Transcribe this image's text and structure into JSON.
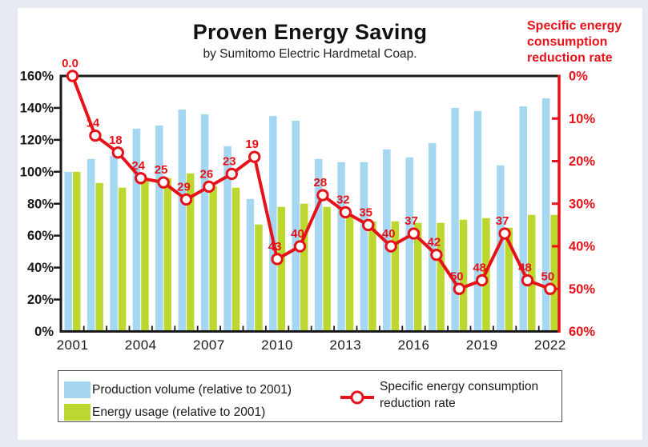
{
  "title": "Proven Energy Saving",
  "subtitle": "by Sumitomo Electric Hardmetal Coap.",
  "right_axis_title_lines": [
    "Specific energy",
    "consumption",
    "reduction rate"
  ],
  "legend": {
    "production": "Production volume (relative to 2001)",
    "energy": "Energy usage (relative to 2001)",
    "reduction_line1": "Specific energy consumption",
    "reduction_line2": "reduction rate"
  },
  "colors": {
    "page_bg": "#E7EAF2",
    "card_bg": "#FFFFFF",
    "production_blue": "#A5D7F3",
    "energy_green": "#BDD731",
    "line_red": "#E5121A",
    "axis_black": "#1A1A1A",
    "legend_border": "#4D4D4D"
  },
  "chart_data": {
    "type": "combo-bar-line",
    "title": "Proven Energy Saving",
    "subtitle": "by Sumitomo Electric Hardmetal Coap.",
    "grid": false,
    "legend_position": "bottom",
    "years": [
      2001,
      2002,
      2003,
      2004,
      2005,
      2006,
      2007,
      2008,
      2009,
      2010,
      2011,
      2012,
      2013,
      2014,
      2015,
      2016,
      2017,
      2018,
      2019,
      2020,
      2021,
      2022
    ],
    "x_tick_labels": [
      "2001",
      "2004",
      "2007",
      "2010",
      "2013",
      "2016",
      "2019",
      "2022"
    ],
    "left_axis": {
      "label": "",
      "min": 0,
      "max": 160,
      "step": 20,
      "format": "percent"
    },
    "right_axis": {
      "label": "Specific energy consumption reduction rate",
      "min": 0,
      "max": 60,
      "step": 10,
      "format": "percent",
      "inverted": true
    },
    "left_axis_ticks": [
      "0%",
      "20%",
      "40%",
      "60%",
      "80%",
      "100%",
      "120%",
      "140%",
      "160%"
    ],
    "right_axis_ticks": [
      "0%",
      "10%",
      "20%",
      "30%",
      "40%",
      "50%",
      "60%"
    ],
    "series": [
      {
        "name": "Production volume (relative to 2001)",
        "type": "bar",
        "axis": "left",
        "unit": "%",
        "values": [
          100,
          108,
          110,
          127,
          129,
          139,
          136,
          116,
          83,
          135,
          132,
          108,
          106,
          106,
          114,
          109,
          118,
          140,
          138,
          104,
          141,
          146
        ]
      },
      {
        "name": "Energy usage (relative to 2001)",
        "type": "bar",
        "axis": "left",
        "unit": "%",
        "values": [
          100,
          93,
          90,
          96,
          96,
          99,
          91,
          90,
          67,
          78,
          80,
          78,
          73,
          69,
          69,
          68,
          68,
          70,
          71,
          65,
          73,
          73
        ]
      },
      {
        "name": "Specific energy consumption reduction rate",
        "type": "line",
        "axis": "right",
        "unit": "%",
        "values": [
          0.0,
          14,
          18,
          24,
          25,
          29,
          26,
          23,
          19,
          43,
          40,
          28,
          32,
          35,
          40,
          37,
          42,
          50,
          48,
          37,
          48,
          50
        ],
        "labels": [
          "0.0",
          "14",
          "18",
          "24",
          "25",
          "29",
          "26",
          "23",
          "19",
          "43",
          "40",
          "28",
          "32",
          "35",
          "40",
          "37",
          "42",
          "50",
          "48",
          "37",
          "48",
          "50"
        ]
      }
    ]
  }
}
